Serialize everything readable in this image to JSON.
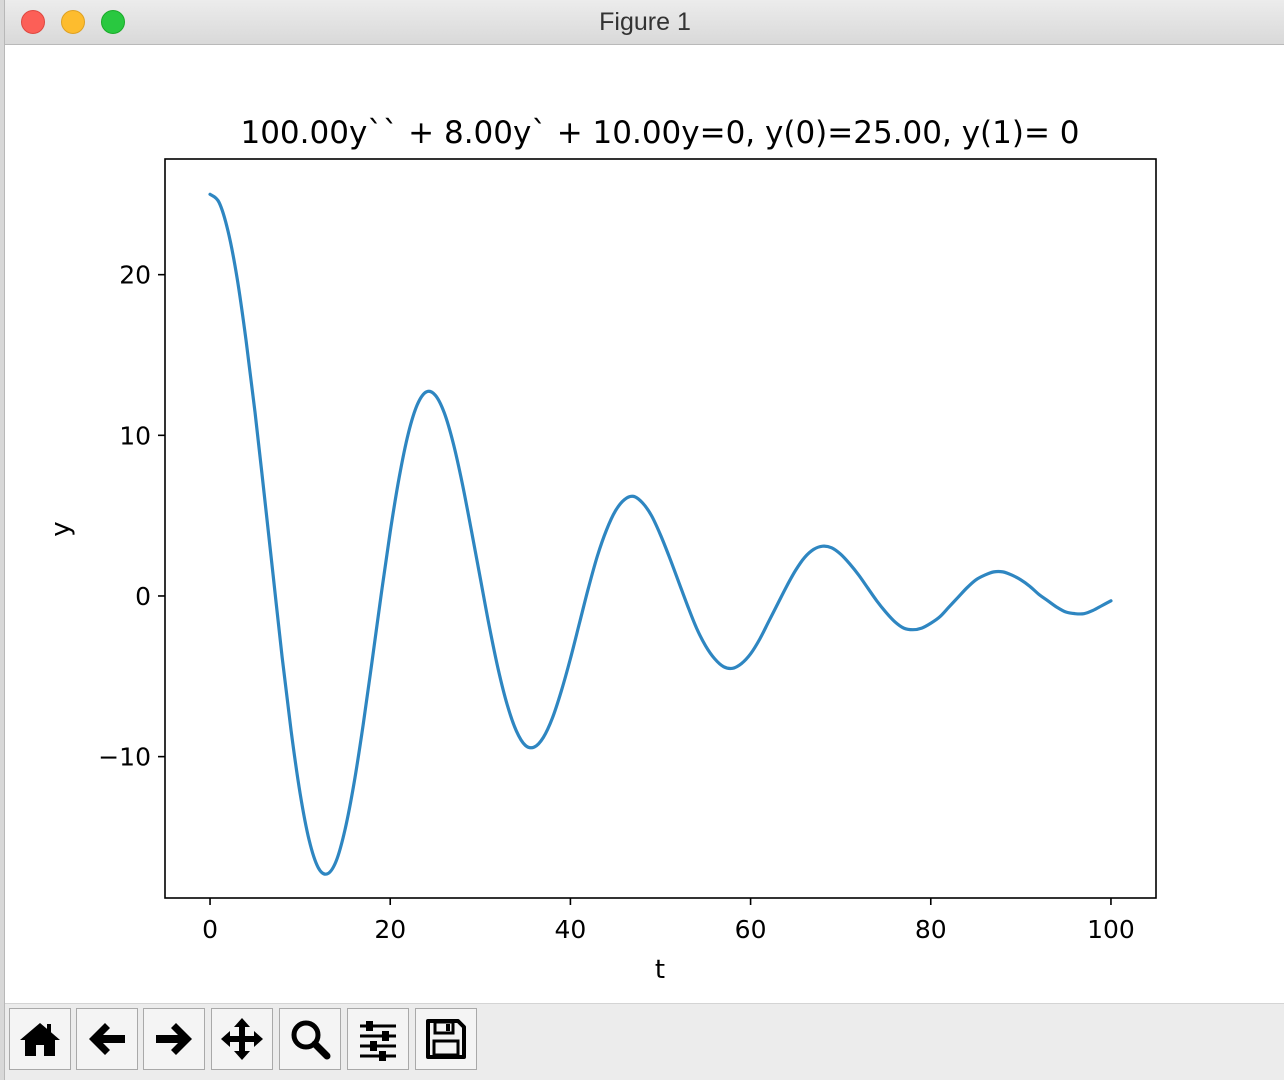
{
  "window": {
    "title": "Figure 1"
  },
  "toolbar": {
    "buttons": [
      {
        "icon": "home-icon",
        "name": "home-button"
      },
      {
        "icon": "arrow-left-icon",
        "name": "back-button"
      },
      {
        "icon": "arrow-right-icon",
        "name": "forward-button"
      },
      {
        "icon": "move-icon",
        "name": "pan-button"
      },
      {
        "icon": "zoom-icon",
        "name": "zoom-button"
      },
      {
        "icon": "sliders-icon",
        "name": "configure-subplots-button"
      },
      {
        "icon": "save-icon",
        "name": "save-button"
      }
    ]
  },
  "chart_data": {
    "type": "line",
    "title": "100.00y`` + 8.00y` + 10.00y=0, y(0)=25.00, y(1)= 0",
    "xlabel": "t",
    "ylabel": "y",
    "xlim": [
      -5,
      105
    ],
    "ylim": [
      -18.8,
      27.2
    ],
    "xticks": [
      0,
      20,
      40,
      60,
      80,
      100
    ],
    "xtick_labels": [
      "0",
      "20",
      "40",
      "60",
      "80",
      "100"
    ],
    "yticks": [
      -10,
      0,
      10,
      20
    ],
    "ytick_labels": [
      "−10",
      "0",
      "10",
      "20"
    ],
    "grid": false,
    "legend": "none",
    "color": "#2e86c1",
    "series": [
      {
        "x": [
          0,
          1,
          2,
          3,
          4,
          5,
          6,
          7,
          8,
          9,
          10,
          11,
          12,
          13,
          14,
          15,
          16,
          17,
          18,
          19,
          20,
          21,
          22,
          23,
          24,
          25,
          26,
          27,
          28,
          29,
          30,
          31,
          32,
          33,
          34,
          35,
          36,
          37,
          38,
          39,
          40,
          41,
          42,
          43,
          44,
          45,
          46,
          47,
          48,
          49,
          50,
          51,
          52,
          53,
          54,
          55,
          56,
          57,
          58,
          59,
          60,
          61,
          62,
          63,
          64,
          65,
          66,
          67,
          68,
          69,
          70,
          71,
          72,
          73,
          74,
          75,
          76,
          77,
          78,
          79,
          80,
          81,
          82,
          83,
          84,
          85,
          86,
          87,
          88,
          89,
          90,
          91,
          92,
          93,
          94,
          95,
          96,
          97,
          98,
          99,
          100
        ],
        "y": [
          25.0,
          24.5,
          22.7,
          19.8,
          15.9,
          11.4,
          6.4,
          1.3,
          -3.8,
          -8.4,
          -12.3,
          -15.2,
          -16.9,
          -17.3,
          -16.5,
          -14.5,
          -11.6,
          -8.0,
          -4.0,
          0.1,
          4.0,
          7.4,
          10.1,
          11.9,
          12.7,
          12.5,
          11.4,
          9.5,
          7.0,
          4.1,
          1.1,
          -1.9,
          -4.6,
          -6.8,
          -8.4,
          -9.3,
          -9.4,
          -8.8,
          -7.6,
          -5.9,
          -3.9,
          -1.7,
          0.5,
          2.5,
          4.1,
          5.3,
          6.0,
          6.2,
          5.8,
          5.0,
          3.8,
          2.4,
          0.9,
          -0.6,
          -2.0,
          -3.1,
          -3.9,
          -4.4,
          -4.5,
          -4.2,
          -3.6,
          -2.7,
          -1.6,
          -0.5,
          0.6,
          1.6,
          2.4,
          2.9,
          3.1,
          3.0,
          2.6,
          2.0,
          1.3,
          0.5,
          -0.3,
          -1.0,
          -1.6,
          -2.0,
          -2.1,
          -2.0,
          -1.7,
          -1.3,
          -0.7,
          -0.1,
          0.5,
          1.0,
          1.3,
          1.5,
          1.5,
          1.3,
          1.0,
          0.6,
          0.1,
          -0.3,
          -0.7,
          -1.0,
          -1.1,
          -1.1,
          -0.9,
          -0.6,
          -0.3
        ]
      }
    ]
  }
}
